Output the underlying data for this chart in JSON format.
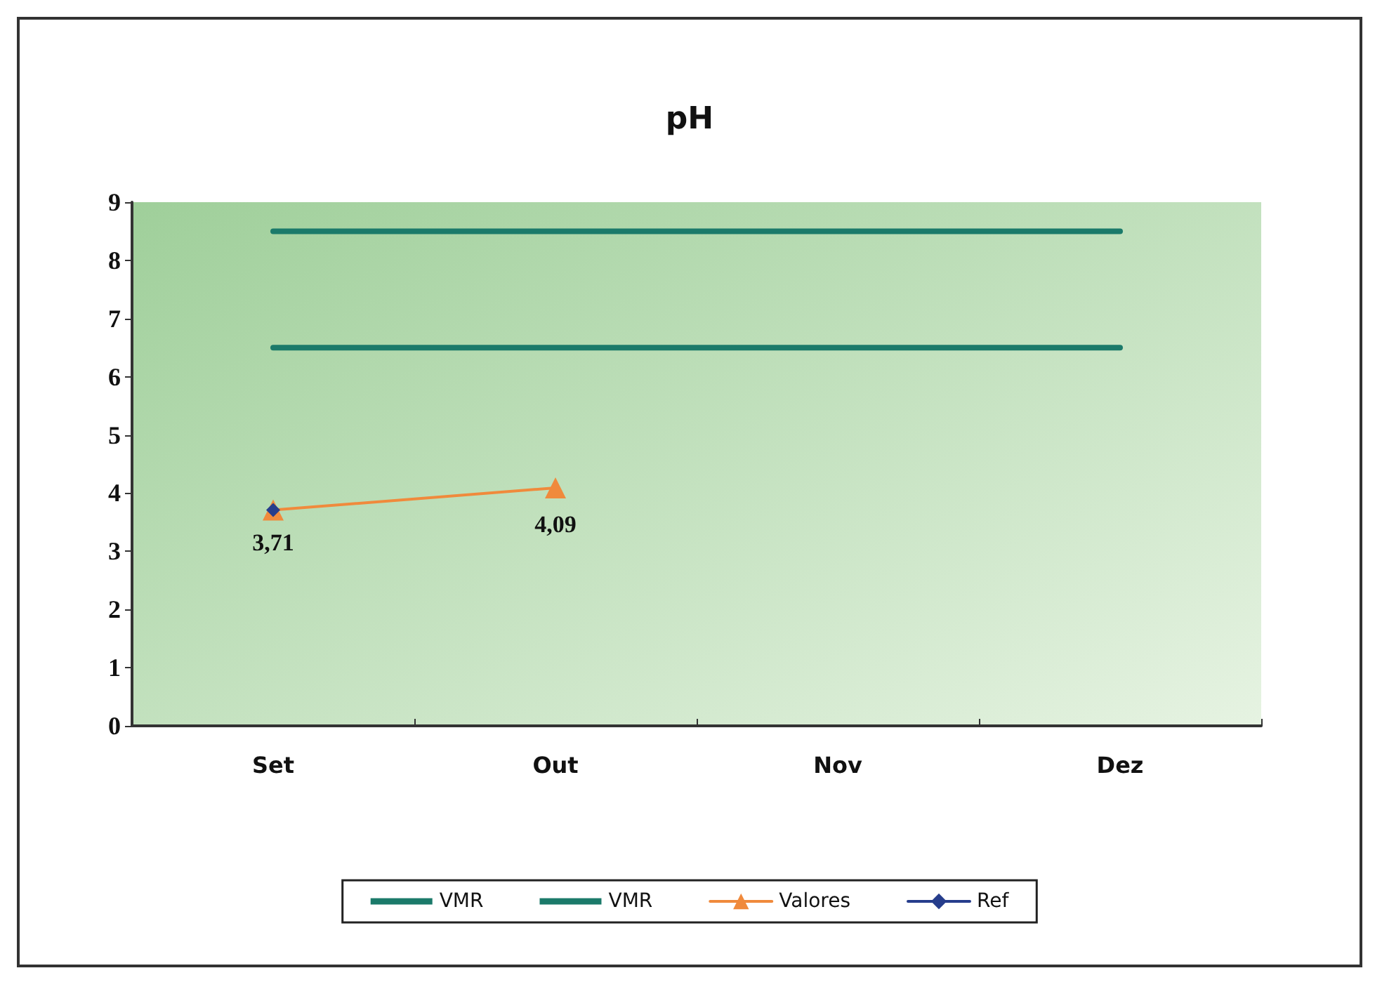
{
  "chart_data": {
    "type": "line",
    "title": "pH",
    "categories": [
      "Set",
      "Out",
      "Nov",
      "Dez"
    ],
    "series": [
      {
        "name": "VMR",
        "color": "#1b7a6a",
        "values": [
          6.5,
          6.5,
          6.5,
          6.5
        ],
        "marker": "none"
      },
      {
        "name": "VMR",
        "color": "#1b7a6a",
        "values": [
          8.5,
          8.5,
          8.5,
          8.5
        ],
        "marker": "none"
      },
      {
        "name": "Valores",
        "color": "#f08a3c",
        "values": [
          3.71,
          4.09,
          null,
          null
        ],
        "marker": "triangle",
        "value_labels": [
          null,
          "4,09",
          null,
          null
        ]
      },
      {
        "name": "Ref",
        "color": "#263d8c",
        "values": [
          3.71,
          null,
          null,
          null
        ],
        "marker": "diamond",
        "value_labels": [
          "3,71",
          null,
          null,
          null
        ]
      }
    ],
    "ylim": [
      0,
      9
    ],
    "yticks": [
      0,
      1,
      2,
      3,
      4,
      5,
      6,
      7,
      8,
      9
    ],
    "grid": false,
    "legend": "bottom",
    "line_style": "solid"
  }
}
